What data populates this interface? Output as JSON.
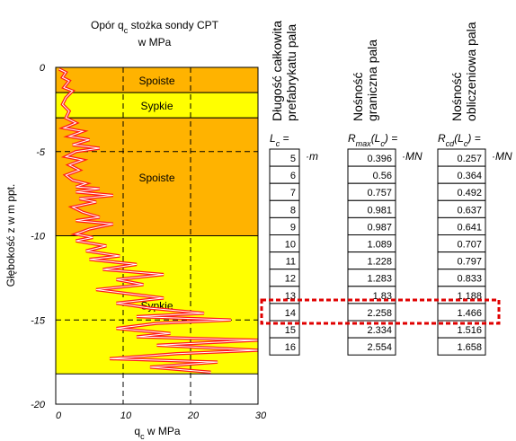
{
  "chart_data": {
    "type": "line",
    "title": [
      {
        "text": "Opór q"
      },
      {
        "sub": "c"
      },
      {
        "text": " stożka sondy CPT"
      }
    ],
    "subtitle": "w MPa",
    "x_label": [
      {
        "text": "q"
      },
      {
        "sub": "c"
      },
      {
        "text": " w MPa"
      }
    ],
    "y_label": "Głębokość z w m ppt.",
    "xlim": [
      0,
      30
    ],
    "xticks": [
      0,
      10,
      20,
      30
    ],
    "ylim": [
      -20,
      0
    ],
    "yticks": [
      0,
      -5,
      -10,
      -15,
      -20
    ],
    "grid": true,
    "color": "#ff1a1a",
    "layers": [
      {
        "name": "Spoiste",
        "top": 0,
        "bottom": -1.5,
        "color": "#ffb300"
      },
      {
        "name": "Sypkie",
        "top": -1.5,
        "bottom": -3,
        "color": "#ffff00"
      },
      {
        "name": "Spoiste",
        "top": -3,
        "bottom": -10,
        "color": "#ffb300"
      },
      {
        "name": "Sypkie",
        "top": -10,
        "bottom": -18.2,
        "color": "#ffff00"
      }
    ],
    "x": [
      0.5,
      1.5,
      1.0,
      2.0,
      1.2,
      2.5,
      1.5,
      1.0,
      2.0,
      1.5,
      3.0,
      1.2,
      4.0,
      2.0,
      5.0,
      2.5,
      6.5,
      3.0,
      1.5,
      4.0,
      2.0,
      3.5,
      1.5,
      2.5,
      4.5,
      3.0,
      6.5,
      3.0,
      8.5,
      3.5,
      6.0,
      2.5,
      4.0,
      6.5,
      3.0,
      8.5,
      5.0,
      3.0,
      5.5,
      3.0,
      7.5,
      4.5,
      9.5,
      5.0,
      12.0,
      7.0,
      16.0,
      9.0,
      13.0,
      6.0,
      10.0,
      16.0,
      9.0,
      14.0,
      22.0,
      12.0,
      26.0,
      15.0,
      9.0,
      17.0,
      12.0,
      30.0,
      15.0,
      30.0,
      18.0,
      8.0,
      24.0,
      14.0,
      23.0
    ],
    "values": [
      -0.1,
      -0.3,
      -0.6,
      -0.8,
      -1.2,
      -1.4,
      -1.8,
      -2.2,
      -2.6,
      -3.0,
      -3.3,
      -3.6,
      -3.8,
      -4.1,
      -4.3,
      -4.6,
      -4.8,
      -5.0,
      -5.3,
      -5.5,
      -5.8,
      -6.1,
      -6.4,
      -6.7,
      -6.9,
      -7.1,
      -7.2,
      -7.4,
      -7.6,
      -7.8,
      -8.0,
      -8.3,
      -8.6,
      -8.9,
      -9.1,
      -9.3,
      -9.6,
      -9.9,
      -10.1,
      -10.3,
      -10.6,
      -10.9,
      -11.2,
      -11.4,
      -11.7,
      -12.0,
      -12.3,
      -12.6,
      -12.9,
      -13.2,
      -13.4,
      -13.7,
      -14.0,
      -14.3,
      -14.6,
      -14.8,
      -15.0,
      -15.2,
      -15.5,
      -15.8,
      -16.0,
      -16.2,
      -16.5,
      -16.8,
      -17.0,
      -17.3,
      -17.5,
      -17.8,
      -18.1
    ]
  },
  "tables": [
    {
      "header": [
        "Długość całkowita",
        "prefabrykatu pala"
      ],
      "formula": [
        {
          "text": "L"
        },
        {
          "sub": "c"
        },
        {
          "text": " ="
        }
      ],
      "unit": "·m",
      "values": [
        "5",
        "6",
        "7",
        "8",
        "9",
        "10",
        "11",
        "12",
        "13",
        "14",
        "15",
        "16"
      ]
    },
    {
      "header": [
        "Nośność",
        "graniczna pala"
      ],
      "formula": [
        {
          "text": "R"
        },
        {
          "sub": "max"
        },
        {
          "text": "(L"
        },
        {
          "sub": "c"
        },
        {
          "text": ") ="
        }
      ],
      "unit": "·MN",
      "values": [
        "0.396",
        "0.56",
        "0.757",
        "0.981",
        "0.987",
        "1.089",
        "1.228",
        "1.283",
        "1.83",
        "2.258",
        "2.334",
        "2.554"
      ]
    },
    {
      "header": [
        "Nośność",
        "obliczeniowa pala"
      ],
      "formula": [
        {
          "text": "R"
        },
        {
          "sub": "cd"
        },
        {
          "text": "(L"
        },
        {
          "sub": "c"
        },
        {
          "text": ") ="
        }
      ],
      "unit": "·MN",
      "values": [
        "0.257",
        "0.364",
        "0.492",
        "0.637",
        "0.641",
        "0.707",
        "0.797",
        "0.833",
        "1.188",
        "1.466",
        "1.516",
        "1.658"
      ]
    }
  ]
}
